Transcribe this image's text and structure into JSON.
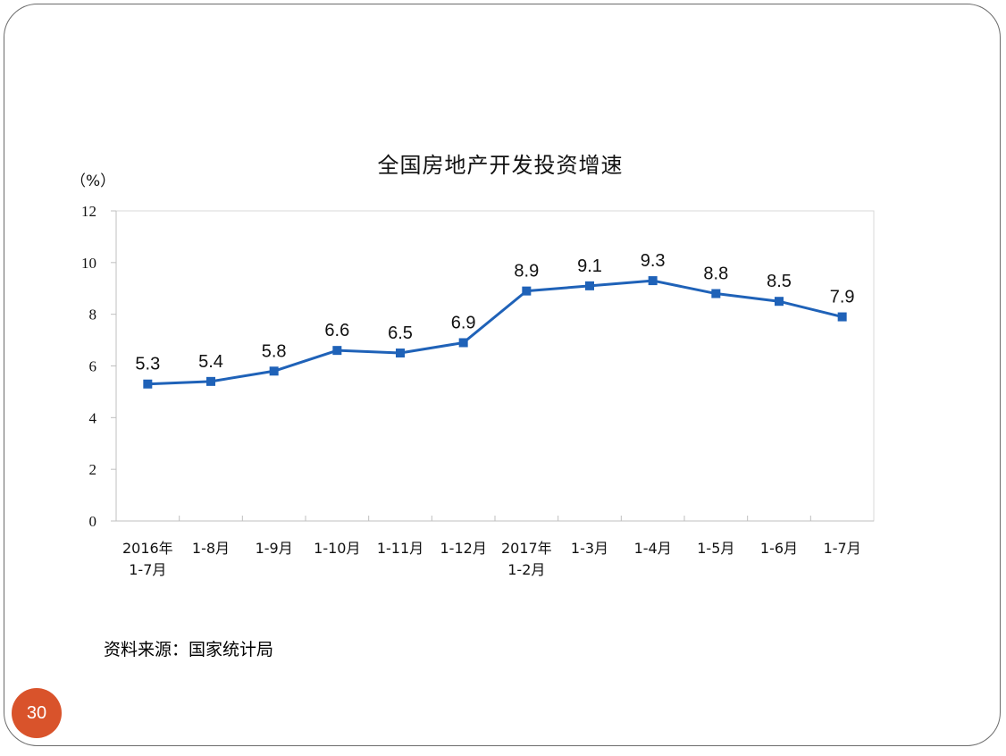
{
  "chart_data": {
    "type": "line",
    "title": "全国房地产开发投资增速",
    "ylabel": "（%）",
    "xlabel": "",
    "ylim": [
      0,
      12
    ],
    "yticks": [
      "0",
      "2",
      "4",
      "6",
      "8",
      "10",
      "12"
    ],
    "categories": [
      [
        "2016年",
        "1-7月"
      ],
      [
        "1-8月"
      ],
      [
        "1-9月"
      ],
      [
        "1-10月"
      ],
      [
        "1-11月"
      ],
      [
        "1-12月"
      ],
      [
        "2017年",
        "1-2月"
      ],
      [
        "1-3月"
      ],
      [
        "1-4月"
      ],
      [
        "1-5月"
      ],
      [
        "1-6月"
      ],
      [
        "1-7月"
      ]
    ],
    "series": [
      {
        "values": [
          5.3,
          5.4,
          5.8,
          6.6,
          6.5,
          6.9,
          8.9,
          9.1,
          9.3,
          8.8,
          8.5,
          7.9
        ],
        "labels": [
          "5.3",
          "5.4",
          "5.8",
          "6.6",
          "6.5",
          "6.9",
          "8.9",
          "9.1",
          "9.3",
          "8.8",
          "8.5",
          "7.9"
        ]
      }
    ],
    "grid": false,
    "line_color": "#1f62b8"
  },
  "source_text": "资料来源：国家统计局",
  "page_number": "30",
  "colors": {
    "badge": "#d9532b",
    "line": "#1f62b8"
  }
}
